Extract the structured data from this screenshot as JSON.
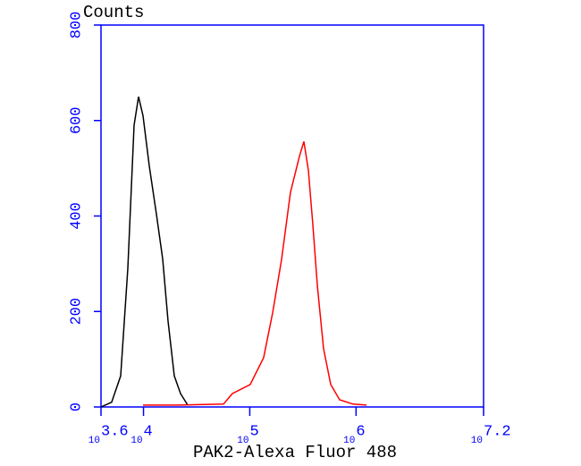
{
  "chart_data": {
    "type": "line",
    "y_label": "Counts",
    "x_label": "PAK2-Alexa Fluor 488",
    "log_base": 10,
    "xlim": [
      3.6,
      7.2
    ],
    "xticks": [
      3.6,
      4,
      5,
      6,
      7.2
    ],
    "ylim": [
      0,
      800
    ],
    "yticks": [
      0,
      200,
      400,
      600,
      800
    ],
    "axis_color": "#0000ff",
    "series": [
      {
        "color": "#000000",
        "x": [
          3.6,
          3.7,
          3.785,
          3.852,
          3.911,
          3.953,
          3.995,
          4.054,
          4.121,
          4.18,
          4.231,
          4.29,
          4.349,
          4.416
        ],
        "values": [
          0,
          10,
          65,
          290,
          590,
          650,
          610,
          505,
          405,
          310,
          180,
          65,
          28,
          4
        ]
      },
      {
        "color": "#ff0000",
        "x": [
          3.995,
          4.332,
          4.752,
          4.836,
          5.004,
          5.13,
          5.215,
          5.299,
          5.383,
          5.467,
          5.509,
          5.551,
          5.593,
          5.636,
          5.694,
          5.762,
          5.846,
          5.972,
          6.098
        ],
        "values": [
          4,
          4,
          6,
          28,
          47,
          103,
          197,
          309,
          450,
          525,
          556,
          496,
          384,
          253,
          122,
          47,
          15,
          6,
          4
        ]
      }
    ]
  }
}
